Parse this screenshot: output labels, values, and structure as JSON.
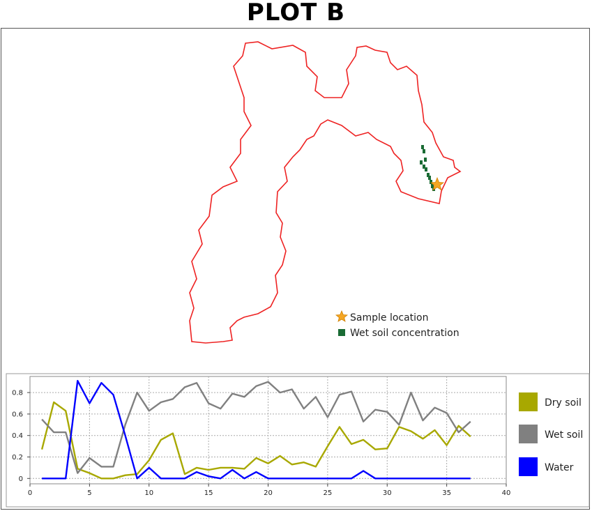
{
  "title": "PLOT B",
  "map": {
    "legend": [
      {
        "label": "Sample location",
        "icon": "star-icon",
        "color": "#f5a623"
      },
      {
        "label": "Wet soil concentration",
        "icon": "square-icon",
        "color": "#1a6b34"
      }
    ],
    "outline_color": "#ee2222"
  },
  "chart_data": {
    "type": "line",
    "x": [
      1,
      2,
      3,
      4,
      5,
      6,
      7,
      8,
      9,
      10,
      11,
      12,
      13,
      14,
      15,
      16,
      17,
      18,
      19,
      20,
      21,
      22,
      23,
      24,
      25,
      26,
      27,
      28,
      29,
      30,
      31,
      32,
      33,
      34,
      35,
      36,
      37
    ],
    "xlim": [
      0,
      40
    ],
    "ylim": [
      -0.05,
      0.95
    ],
    "xticks": [
      0,
      5,
      10,
      15,
      20,
      25,
      30,
      35,
      40
    ],
    "yticks": [
      0,
      0.2,
      0.4,
      0.6,
      0.8
    ],
    "ytick_labels": [
      "0",
      "0.2",
      "0.4",
      "0.6",
      "0.8"
    ],
    "grid": true,
    "legend_position": "right",
    "series": [
      {
        "name": "Dry soil",
        "color": "#a8a800",
        "values": [
          0.27,
          0.71,
          0.63,
          0.09,
          0.05,
          0.0,
          0.0,
          0.03,
          0.04,
          0.17,
          0.36,
          0.42,
          0.04,
          0.1,
          0.08,
          0.1,
          0.1,
          0.09,
          0.19,
          0.14,
          0.21,
          0.13,
          0.15,
          0.11,
          0.3,
          0.48,
          0.32,
          0.36,
          0.27,
          0.28,
          0.48,
          0.44,
          0.37,
          0.45,
          0.31,
          0.49,
          0.39
        ]
      },
      {
        "name": "Wet soil",
        "color": "#808080",
        "values": [
          0.55,
          0.43,
          0.43,
          0.05,
          0.19,
          0.11,
          0.11,
          0.5,
          0.8,
          0.63,
          0.71,
          0.74,
          0.85,
          0.89,
          0.7,
          0.65,
          0.79,
          0.76,
          0.86,
          0.9,
          0.8,
          0.83,
          0.65,
          0.76,
          0.57,
          0.78,
          0.81,
          0.53,
          0.64,
          0.62,
          0.5,
          0.8,
          0.54,
          0.66,
          0.61,
          0.43,
          0.53
        ]
      },
      {
        "name": "Water",
        "color": "#0000ff",
        "values": [
          0,
          0,
          0,
          0.91,
          0.7,
          0.89,
          0.78,
          0.4,
          0.0,
          0.1,
          0.0,
          0.0,
          0.0,
          0.06,
          0.02,
          0.0,
          0.08,
          0.0,
          0.06,
          0.0,
          0.0,
          0.0,
          0.0,
          0.0,
          0.0,
          0.0,
          0.0,
          0.07,
          0.0,
          0.0,
          0.0,
          0.0,
          0.0,
          0.0,
          0.0,
          0.0,
          0.0
        ]
      }
    ]
  }
}
